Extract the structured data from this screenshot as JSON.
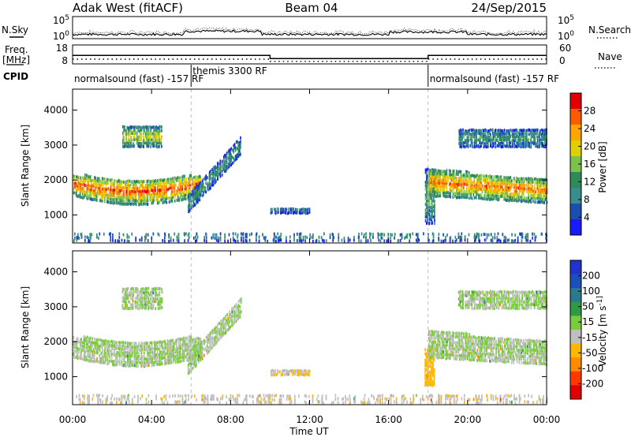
{
  "header": {
    "station": "Adak West (fitACF)",
    "beam": "Beam 04",
    "date": "24/Sep/2015"
  },
  "noise_panel": {
    "left_label": "N.Sky",
    "right_label": "N.Search",
    "left_ticks": [
      "10^5",
      "10^0"
    ],
    "right_ticks": [
      "10^5",
      "10^0"
    ]
  },
  "freq_panel": {
    "left_label_line1": "Freq.",
    "left_label_line2": "[MHz]",
    "right_label": "Nave",
    "left_ticks": [
      "18",
      "8"
    ],
    "right_ticks": [
      "60",
      "0"
    ],
    "freq_mhz": [
      {
        "t": 0,
        "v": 12.5
      },
      {
        "t": 10,
        "v": 12.5
      },
      {
        "t": 10,
        "v": 10.8
      },
      {
        "t": 18,
        "v": 10.8
      },
      {
        "t": 18,
        "v": 12.5
      },
      {
        "t": 24,
        "v": 12.5
      }
    ],
    "nave": [
      {
        "t": 0,
        "v": 15
      },
      {
        "t": 10,
        "v": 15
      },
      {
        "t": 10,
        "v": 8
      },
      {
        "t": 18,
        "v": 8
      },
      {
        "t": 18,
        "v": 15
      },
      {
        "t": 24,
        "v": 15
      }
    ]
  },
  "cpid": {
    "label": "CPID",
    "segments": [
      {
        "start": 0,
        "end": 6,
        "text": "normalsound (fast) -157 RF"
      },
      {
        "start": 6,
        "end": 18,
        "text": "themis 3300 RF"
      },
      {
        "start": 18,
        "end": 24,
        "text": "normalsound (fast) -157 RF"
      }
    ],
    "boundaries": [
      6,
      18
    ]
  },
  "chart_data": [
    {
      "type": "heatmap",
      "ylabel": "Slant Range [km]",
      "ylim": [
        200,
        4600
      ],
      "yticks": [
        "1000",
        "2000",
        "3000",
        "4000"
      ],
      "colorbar": {
        "label": "Power [dB]",
        "ticks": [
          "4",
          "8",
          "12",
          "16",
          "20",
          "24",
          "28"
        ],
        "range": [
          0,
          32
        ],
        "colors": [
          "#1a1aff",
          "#1a4fb0",
          "#3a8d8d",
          "#2e8b57",
          "#7cc24a",
          "#e0d000",
          "#ffa500",
          "#ff5a00",
          "#e00000"
        ]
      },
      "echo_regions": [
        {
          "name": "main band",
          "t": [
            0,
            6.5
          ],
          "range": [
            1300,
            2200
          ],
          "peak": 28
        },
        {
          "name": "upper patch",
          "t": [
            2.5,
            4.5
          ],
          "range": [
            2900,
            3500
          ],
          "peak": 20
        },
        {
          "name": "rising arm",
          "t": [
            5.8,
            8.5
          ],
          "range": [
            1000,
            3300
          ],
          "peak": 12
        },
        {
          "name": "mid patch",
          "t": [
            10,
            12
          ],
          "range": [
            1000,
            1200
          ],
          "peak": 8
        },
        {
          "name": "dusk onset",
          "t": [
            17.8,
            18.3
          ],
          "range": [
            700,
            2300
          ],
          "peak": 14
        },
        {
          "name": "evening band",
          "t": [
            18,
            24
          ],
          "range": [
            1200,
            2300
          ],
          "peak": 26
        },
        {
          "name": "evening upper",
          "t": [
            19.5,
            24
          ],
          "range": [
            2900,
            3400
          ],
          "peak": 12
        },
        {
          "name": "ground scatter",
          "t": [
            0,
            24
          ],
          "range": [
            200,
            500
          ],
          "peak": 10
        }
      ]
    },
    {
      "type": "heatmap",
      "ylabel": "Slant Range [km]",
      "ylim": [
        200,
        4600
      ],
      "yticks": [
        "1000",
        "2000",
        "3000",
        "4000"
      ],
      "colorbar": {
        "label": "Velocity [m s^-1]",
        "ticks": [
          "200",
          "100",
          "50",
          "15",
          "-15",
          "-50",
          "-100",
          "-200"
        ],
        "range": [
          -250,
          250
        ],
        "colors": [
          "#e00000",
          "#ff3a00",
          "#ff8c00",
          "#ffb700",
          "#bfbfbf",
          "#7acd3a",
          "#2e9a44",
          "#2a7a8f",
          "#1a50b8",
          "#2233cc"
        ]
      },
      "echo_regions": [
        {
          "name": "main band",
          "t": [
            0,
            6.5
          ],
          "range": [
            1300,
            2200
          ],
          "velocity": 0
        },
        {
          "name": "upper patch",
          "t": [
            2.5,
            4.5
          ],
          "range": [
            2900,
            3500
          ],
          "velocity": 0
        },
        {
          "name": "rising arm",
          "t": [
            5.8,
            8.5
          ],
          "range": [
            1000,
            3300
          ],
          "velocity": 0
        },
        {
          "name": "mid patch",
          "t": [
            10,
            12
          ],
          "range": [
            1000,
            1200
          ],
          "velocity": -50
        },
        {
          "name": "dusk onset",
          "t": [
            17.8,
            18.3
          ],
          "range": [
            700,
            1800
          ],
          "velocity": -80
        },
        {
          "name": "evening band",
          "t": [
            18,
            24
          ],
          "range": [
            1200,
            2300
          ],
          "velocity": 0
        },
        {
          "name": "evening upper",
          "t": [
            19.5,
            24
          ],
          "range": [
            2900,
            3400
          ],
          "velocity": 0
        },
        {
          "name": "ground scatter",
          "t": [
            0,
            24
          ],
          "range": [
            200,
            500
          ],
          "velocity": -40
        }
      ]
    }
  ],
  "xaxis": {
    "label": "Time UT",
    "xlim": [
      0,
      24
    ],
    "ticks": [
      {
        "t": 0,
        "label": "00:00"
      },
      {
        "t": 4,
        "label": "04:00"
      },
      {
        "t": 8,
        "label": "08:00"
      },
      {
        "t": 12,
        "label": "12:00"
      },
      {
        "t": 16,
        "label": "16:00"
      },
      {
        "t": 20,
        "label": "20:00"
      },
      {
        "t": 24,
        "label": "00:00"
      }
    ]
  }
}
